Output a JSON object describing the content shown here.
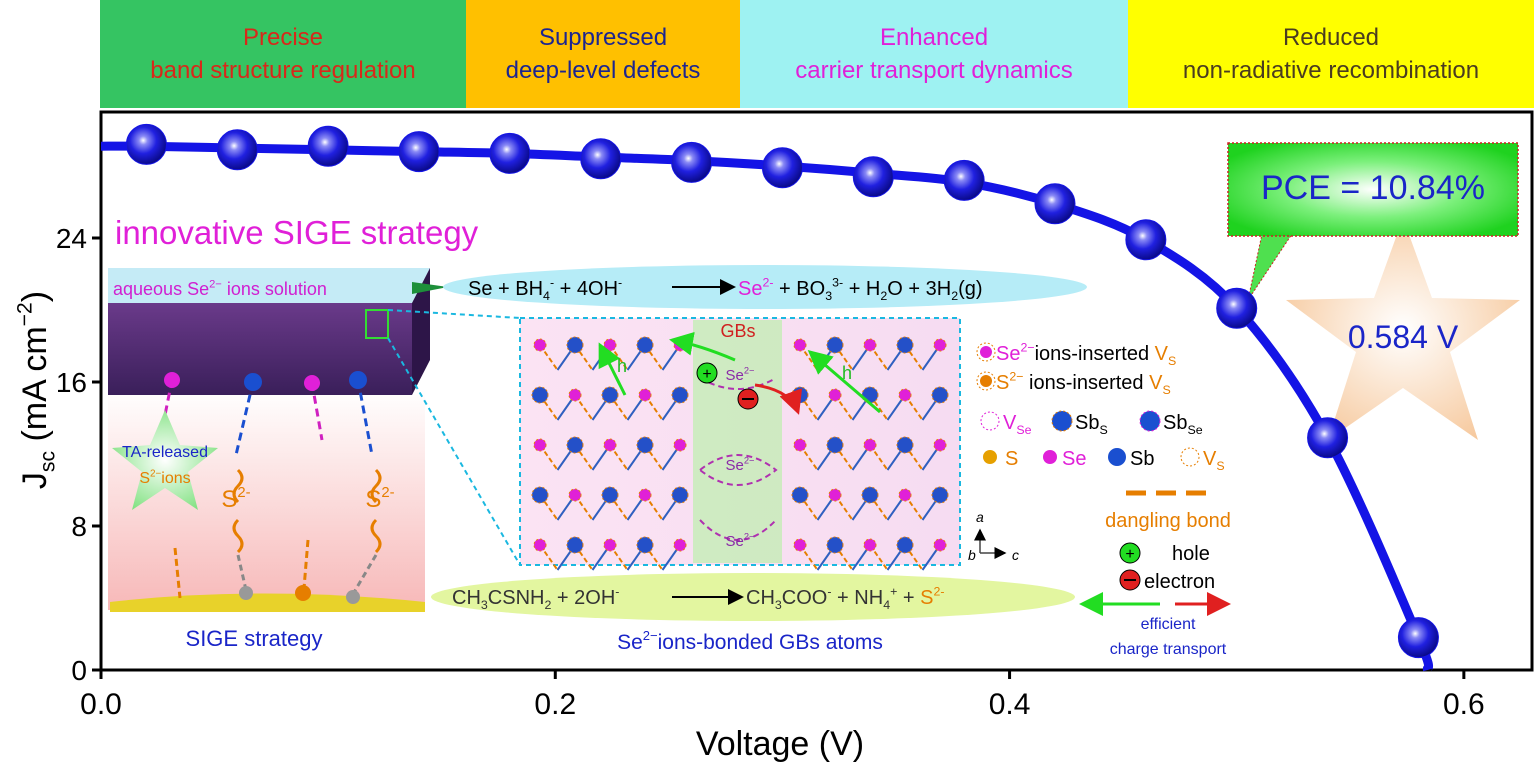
{
  "chart_data": {
    "type": "line",
    "banner": [
      {
        "lines": [
          "Precise",
          "band structure regulation"
        ],
        "color": "#35c462",
        "text_color": "#d8281a"
      },
      {
        "lines": [
          "Suppressed",
          "deep-level defects"
        ],
        "color": "#ffc000",
        "text_color": "#1c2590"
      },
      {
        "lines": [
          "Enhanced",
          "carrier transport dynamics"
        ],
        "color": "#9ef2f2",
        "text_color": "#e020d8"
      },
      {
        "lines": [
          "Reduced",
          "non-radiative recombination"
        ],
        "color": "#ffff00",
        "text_color": "#4a3c20"
      }
    ],
    "x_label": "Voltage (V)",
    "y_label": [
      {
        "t": "J"
      },
      {
        "sub": "sc"
      },
      {
        "t": " (mA cm"
      },
      {
        "sup": "−2"
      },
      {
        "t": ")"
      }
    ],
    "xlim": [
      0,
      0.63
    ],
    "ylim": [
      0,
      31
    ],
    "xticks": [
      {
        "value": 0,
        "label": "0.0"
      },
      0.2,
      0.4,
      0.6
    ],
    "yticks": [
      0,
      8,
      16,
      24
    ],
    "series": [
      {
        "color": "#1414e6",
        "x": [
          0,
          0.02,
          0.06,
          0.1,
          0.14,
          0.18,
          0.22,
          0.26,
          0.3,
          0.34,
          0.38,
          0.42,
          0.46,
          0.5,
          0.54,
          0.58,
          0.584
        ],
        "values": [
          29.1,
          29.1,
          29.0,
          28.9,
          28.8,
          28.7,
          28.5,
          28.3,
          28.0,
          27.6,
          27.1,
          25.9,
          23.9,
          20.1,
          12.9,
          1.8,
          0
        ]
      },
      {
        "color": "#1414e6",
        "x": [
          0.02,
          0.06,
          0.1,
          0.14,
          0.18,
          0.22,
          0.26,
          0.3,
          0.34,
          0.38,
          0.42,
          0.46,
          0.5,
          0.54,
          0.58
        ],
        "values": [
          29.2,
          28.9,
          29.1,
          28.8,
          28.7,
          28.4,
          28.2,
          27.9,
          27.4,
          27.2,
          25.9,
          23.9,
          20.1,
          12.9,
          1.8
        ]
      }
    ],
    "annotations": {
      "strategy": [
        {
          "t": "innovative SIGE strategy"
        }
      ],
      "solution": [
        {
          "t": "aqueous Se"
        },
        {
          "sup": "2−"
        },
        {
          "t": " ions solution"
        }
      ],
      "rxn1_left": [
        {
          "t": "Se + BH"
        },
        {
          "sub": "4"
        },
        {
          "sup": "-"
        },
        {
          "t": " + 4OH"
        },
        {
          "sup": "-"
        }
      ],
      "rxn1_right": [
        {
          "t": "Se",
          "color": "#e020d8"
        },
        {
          "sup": "2-",
          "color": "#e020d8"
        },
        {
          "t": " + BO"
        },
        {
          "sub": "3"
        },
        {
          "sup": "3-"
        },
        {
          "t": " + H"
        },
        {
          "sub": "2"
        },
        {
          "t": "O + 3H"
        },
        {
          "sub": "2"
        },
        {
          "t": "(g)"
        }
      ],
      "gbs": [
        {
          "t": "GBs"
        }
      ],
      "h1": [
        {
          "t": "h"
        }
      ],
      "h2": [
        {
          "t": "h"
        }
      ],
      "se_gb1": [
        {
          "t": "Se"
        },
        {
          "sup": "2−"
        }
      ],
      "se_gb2": [
        {
          "t": "Se"
        },
        {
          "sup": "2−"
        }
      ],
      "se_gb3": [
        {
          "t": "Se"
        },
        {
          "sup": "2−"
        }
      ],
      "ta": [
        {
          "t": "TA-released"
        }
      ],
      "s_ions": [
        {
          "t": "S"
        },
        {
          "sup": "2−"
        },
        {
          "t": "ions"
        }
      ],
      "s1": [
        {
          "t": "S"
        },
        {
          "sup": "2-"
        }
      ],
      "s2": [
        {
          "t": "S"
        },
        {
          "sup": "2-"
        }
      ],
      "sige": [
        {
          "t": "SIGE strategy"
        }
      ],
      "rxn2_left": [
        {
          "t": "CH"
        },
        {
          "sub": "3"
        },
        {
          "t": "CSNH"
        },
        {
          "sub": "2"
        },
        {
          "t": " + 2OH"
        },
        {
          "sup": "-"
        }
      ],
      "rxn2_right": [
        {
          "t": "CH"
        },
        {
          "sub": "3"
        },
        {
          "t": "COO"
        },
        {
          "sup": "-"
        },
        {
          "t": " + NH"
        },
        {
          "sub": "4"
        },
        {
          "sup": "+"
        },
        {
          "t": " + "
        },
        {
          "t": "S",
          "color": "#e67e00"
        },
        {
          "sup": "2-",
          "color": "#e67e00"
        }
      ],
      "bonded": [
        {
          "t": "Se"
        },
        {
          "sup": "2−"
        },
        {
          "t": "ions-bonded GBs atoms"
        }
      ],
      "leg_se_ins": [
        {
          "t": "Se",
          "color": "#e020d8"
        },
        {
          "sup": "2−",
          "color": "#e020d8"
        },
        {
          "t": "ions-inserted "
        },
        {
          "t": "V",
          "color": "#e67e00"
        },
        {
          "sub": "S",
          "color": "#e67e00"
        }
      ],
      "leg_s_ins": [
        {
          "t": "S",
          "color": "#e67e00"
        },
        {
          "sup": "2−",
          "color": "#e67e00"
        },
        {
          "t": " ions-inserted "
        },
        {
          "t": "V",
          "color": "#e67e00"
        },
        {
          "sub": "S",
          "color": "#e67e00"
        }
      ],
      "leg_vse": [
        {
          "t": "V"
        },
        {
          "sub": "Se"
        }
      ],
      "leg_sbs": [
        {
          "t": "Sb"
        },
        {
          "sub": "S"
        }
      ],
      "leg_sbse": [
        {
          "t": "Sb"
        },
        {
          "sub": "Se"
        }
      ],
      "leg_s": [
        {
          "t": "S"
        }
      ],
      "leg_se": [
        {
          "t": "Se"
        }
      ],
      "leg_sb": [
        {
          "t": "Sb"
        }
      ],
      "leg_vs": [
        {
          "t": "V"
        },
        {
          "sub": "S"
        }
      ],
      "dangling": [
        {
          "t": "dangling bond"
        }
      ],
      "hole": [
        {
          "t": "hole"
        }
      ],
      "electron": [
        {
          "t": "electron"
        }
      ],
      "efficient": [
        {
          "t": "efficient"
        }
      ],
      "charge": [
        {
          "t": "charge transport"
        }
      ],
      "ax_a": [
        {
          "t": "a"
        }
      ],
      "ax_b": [
        {
          "t": "b"
        }
      ],
      "ax_c": [
        {
          "t": "c"
        }
      ],
      "pce": [
        {
          "t": "PCE = 10.84%"
        }
      ],
      "voc": [
        {
          "t": "0.584 V"
        }
      ]
    }
  }
}
